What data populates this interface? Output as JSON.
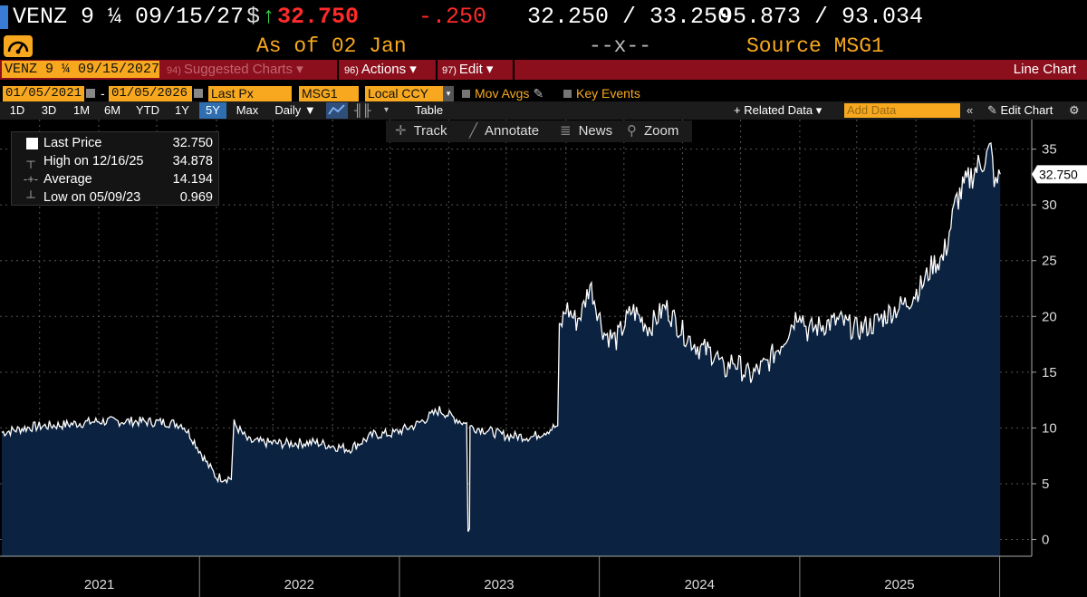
{
  "header": {
    "security": "VENZ 9 ¼ 09/15/27",
    "price_prefix": "$",
    "price_arrow": "↑",
    "price": "32.750",
    "change": "-.250",
    "bid_ask": "32.250 / 33.250",
    "yields": "95.873 / 93.034",
    "as_of": "As of 02 Jan",
    "x_marker": "--x--",
    "source": "Source MSG1"
  },
  "toolbar": {
    "ticker": "VENZ 9 ¼ 09/15/2027",
    "suggested_badge": "94)",
    "suggested": "Suggested Charts ▾",
    "actions_badge": "96)",
    "actions": "Actions ▾",
    "edit_badge": "97)",
    "edit": "Edit ▾",
    "chart_type": "Line Chart"
  },
  "options": {
    "start_date": "01/05/2021",
    "dash": "-",
    "end_date": "01/05/2026",
    "field": "Last Px",
    "source": "MSG1",
    "currency": "Local CCY",
    "mov_avgs": "Mov Avgs",
    "key_events": "Key Events"
  },
  "ranges": {
    "items": [
      "1D",
      "3D",
      "1M",
      "6M",
      "YTD",
      "1Y",
      "5Y",
      "Max"
    ],
    "selected": "5Y",
    "frequency": "Daily ▼",
    "table": "Table",
    "related": "+ Related Data ▾",
    "add_data_placeholder": "Add Data",
    "edit_chart": "Edit Chart"
  },
  "tools": {
    "track": "Track",
    "annotate": "Annotate",
    "news": "News",
    "zoom": "Zoom"
  },
  "legend": {
    "last_label": "Last Price",
    "last_value": "32.750",
    "high_label": "High on 12/16/25",
    "high_value": "34.878",
    "avg_label": "Average",
    "avg_value": "14.194",
    "low_label": "Low on 05/09/23",
    "low_value": "0.969"
  },
  "colors": {
    "background": "#000000",
    "area_fill": "#0b2240",
    "line": "#ffffff",
    "accent_orange": "#f7a81e",
    "price_red": "#ff2a2a",
    "toolbar_red": "#8b0f1c"
  },
  "chart_data": {
    "type": "area",
    "series": [
      {
        "x": [
          "2021-01-05",
          "2021-03-01",
          "2021-05-01",
          "2021-07-01",
          "2021-09-01",
          "2021-11-01",
          "2021-12-01",
          "2021-12-20",
          "2022-01-15",
          "2022-02-01",
          "2022-02-28",
          "2022-03-05",
          "2022-04-01",
          "2022-06-01",
          "2022-08-01",
          "2022-10-01",
          "2022-11-15",
          "2022-12-20",
          "2023-02-01",
          "2023-03-15",
          "2023-05-01",
          "2023-05-09",
          "2023-05-10",
          "2023-06-01",
          "2023-07-15",
          "2023-09-01",
          "2023-10-17",
          "2023-10-20",
          "2023-11-01",
          "2023-11-20",
          "2023-12-01",
          "2023-12-15",
          "2024-01-10",
          "2024-02-01",
          "2024-03-01",
          "2024-04-01",
          "2024-05-01",
          "2024-06-01",
          "2024-07-01",
          "2024-08-01",
          "2024-08-15",
          "2024-09-01",
          "2024-10-01",
          "2024-11-01",
          "2024-12-01",
          "2025-01-01",
          "2025-01-15",
          "2025-02-15",
          "2025-03-15",
          "2025-04-15",
          "2025-05-15",
          "2025-06-15",
          "2025-07-15",
          "2025-08-15",
          "2025-09-01",
          "2025-09-20",
          "2025-10-15",
          "2025-11-15",
          "2025-12-16",
          "2025-12-25",
          "2026-01-02"
        ],
        "y": [
          9.6,
          10.1,
          10.3,
          10.6,
          10.6,
          10.5,
          10.3,
          9.0,
          6.8,
          5.6,
          5.5,
          10.4,
          8.8,
          8.6,
          8.7,
          8.1,
          9.4,
          9.5,
          10.3,
          11.6,
          10.4,
          0.969,
          10.1,
          9.9,
          9.3,
          9.2,
          10.2,
          18.5,
          20.8,
          19.6,
          20.5,
          22.9,
          18.5,
          17.9,
          20.6,
          19.0,
          20.9,
          18.6,
          17.2,
          16.6,
          15.0,
          16.1,
          14.6,
          15.7,
          17.8,
          20.7,
          18.7,
          19.3,
          19.6,
          18.8,
          19.3,
          20.4,
          21.2,
          23.0,
          24.7,
          25.2,
          30.5,
          33.0,
          34.878,
          31.5,
          32.75
        ]
      }
    ],
    "x_tick_labels": [
      "2021",
      "2022",
      "2023",
      "2024",
      "2025"
    ],
    "y_ticks": [
      0,
      5,
      10,
      15,
      20,
      25,
      30,
      35
    ],
    "ylim": [
      -1.5,
      37
    ],
    "last_value_label": "32.750",
    "grid": true
  }
}
